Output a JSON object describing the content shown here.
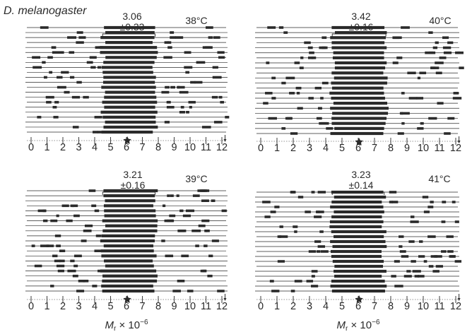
{
  "title": "D. melanogaster",
  "xlabel": {
    "symbol": "M",
    "sub": "r",
    "rest": " × 10",
    "exp": "−6"
  },
  "tick_labels": [
    "0",
    "1",
    "2",
    "3",
    "4",
    "5",
    "6",
    "7",
    "8",
    "9",
    "10",
    "11",
    "12"
  ],
  "colors": {
    "ink": "#2a2a2a",
    "background": "#ffffff"
  },
  "marker": "star-marker",
  "chart_data": [
    {
      "type": "diagram",
      "temperature": "38°C",
      "mean": "3.06",
      "sd": "±0.33",
      "band": [
        4.5,
        7.8
      ],
      "x_range": [
        0,
        12.2
      ],
      "x_label_shown": false
    },
    {
      "type": "diagram",
      "temperature": "40°C",
      "mean": "3.42",
      "sd": "±0.16",
      "band": [
        4.4,
        7.7
      ],
      "x_range": [
        0,
        12.2
      ],
      "x_label_shown": false
    },
    {
      "type": "diagram",
      "temperature": "39°C",
      "mean": "3.21",
      "sd": "±0.16",
      "band": [
        4.5,
        7.8
      ],
      "x_range": [
        0,
        12.2
      ],
      "x_label_shown": true
    },
    {
      "type": "diagram",
      "temperature": "41°C",
      "mean": "3.23",
      "sd": "±0.14",
      "band": [
        4.4,
        7.6
      ],
      "x_range": [
        0,
        12.2
      ],
      "x_label_shown": true
    }
  ]
}
